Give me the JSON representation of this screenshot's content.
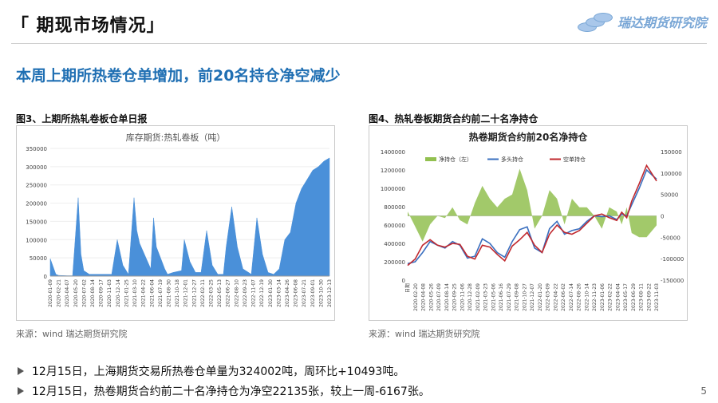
{
  "header": {
    "title": "「 期现市场情况」",
    "brand": "瑞达期货研究院"
  },
  "subtitle": "本周上期所热卷仓单增加，前20名持仓净空减少",
  "figure3": {
    "caption": "图3、上期所热轧卷板仓单日报",
    "source": "来源：wind   瑞达期货研究院"
  },
  "figure4": {
    "caption": "图4、热轧卷板期货合约前二十名净持仓",
    "source": "来源：wind   瑞达期货研究院"
  },
  "bullets": [
    "12月15日，上海期货交易所热卷仓单量为324002吨，周环比+10493吨。",
    "12月15日，热卷期货合约前二十名净持仓为净空22135张，较上一周-6167张。"
  ],
  "page_number": "5",
  "chart_data": [
    {
      "type": "area",
      "title": "库存期货:热轧卷板（吨）",
      "ylim": [
        0,
        350000
      ],
      "yticks": [
        "0",
        "50000",
        "100000",
        "150000",
        "200000",
        "250000",
        "300000",
        "350000"
      ],
      "color": "#4a90d9",
      "xticks": [
        "2020-01-09",
        "2020-02-21",
        "2020-04-07",
        "2020-05-20",
        "2020-07-02",
        "2020-08-14",
        "2020-09-17",
        "2020-11-03",
        "2020-12-14",
        "2021-01-25",
        "2021-03-10",
        "2021-04-22",
        "2021-06-04",
        "2021-07-19",
        "2021-08-30",
        "2021-10-18",
        "2021-12-01",
        "2021-12-27",
        "2022-02-11",
        "2022-03-25",
        "2022-05-13",
        "2022-06-27",
        "2022-08-10",
        "2022-09-23",
        "2022-11-07",
        "2022-12-19",
        "2023-01-30",
        "2023-03-14",
        "2023-04-26",
        "2023-06-08",
        "2023-07-21",
        "2023-09-01",
        "2023-10-30",
        "2023-12-13"
      ],
      "x": [
        0,
        0.02,
        0.03,
        0.06,
        0.08,
        0.1,
        0.11,
        0.12,
        0.14,
        0.17,
        0.18,
        0.2,
        0.22,
        0.24,
        0.26,
        0.28,
        0.3,
        0.31,
        0.32,
        0.36,
        0.37,
        0.38,
        0.41,
        0.42,
        0.44,
        0.47,
        0.48,
        0.5,
        0.52,
        0.54,
        0.56,
        0.58,
        0.6,
        0.62,
        0.63,
        0.65,
        0.67,
        0.69,
        0.71,
        0.72,
        0.74,
        0.76,
        0.78,
        0.8,
        0.82,
        0.84,
        0.86,
        0.88,
        0.9,
        0.92,
        0.94,
        0.96,
        0.98,
        1.0
      ],
      "values": [
        48000,
        5000,
        2000,
        1000,
        1000,
        215000,
        60000,
        15000,
        5000,
        5000,
        5000,
        5000,
        5000,
        100000,
        30000,
        5000,
        215000,
        125000,
        90000,
        20000,
        160000,
        80000,
        20000,
        5000,
        10000,
        15000,
        100000,
        40000,
        10000,
        10000,
        125000,
        30000,
        5000,
        5000,
        80000,
        190000,
        80000,
        20000,
        10000,
        5000,
        160000,
        60000,
        10000,
        5000,
        20000,
        100000,
        120000,
        200000,
        240000,
        265000,
        290000,
        300000,
        315000,
        324000
      ]
    },
    {
      "type": "line",
      "title": "热卷期货合约前20名净持仓",
      "legend": [
        "净持仓（左）",
        "多头持仓",
        "空单持仓"
      ],
      "legend_position": "top",
      "ylim": [
        0,
        1400000
      ],
      "yticks": [
        "0",
        "200000",
        "400000",
        "600000",
        "800000",
        "1000000",
        "1200000",
        "1400000"
      ],
      "y2lim": [
        -150000,
        150000
      ],
      "y2ticks": [
        "150000",
        "100000",
        "50000",
        "0",
        "-50000",
        "-100000",
        "-150000"
      ],
      "xticks": [
        "日期",
        "2020-02-20",
        "2020-04-08",
        "2020-05-26",
        "2020-07-09",
        "2020-08-14",
        "2020-09-25",
        "2020-11-06",
        "2020-12-28",
        "2021-02-09",
        "2021-03-23",
        "2021-05-06",
        "2021-06-16",
        "2021-07-29",
        "2021-09-08",
        "2021-10-27",
        "2021-12-07",
        "2022-01-20",
        "2022-03-09",
        "2022-04-22",
        "2022-06-02",
        "2022-07-14",
        "2022-08-26",
        "2022-10-14",
        "2022-11-23",
        "2023-01-06",
        "2023-02-22",
        "2023-04-04",
        "2023-05-17",
        "2023-06-29",
        "2023-08-11",
        "2023-09-22",
        "2023-11-03"
      ],
      "colors": {
        "net": "#92c050",
        "long": "#3a6fbf",
        "short": "#c0282e"
      },
      "series": [
        {
          "name": "多头持仓",
          "x": [
            0,
            0.03,
            0.06,
            0.09,
            0.12,
            0.15,
            0.18,
            0.21,
            0.24,
            0.27,
            0.3,
            0.33,
            0.36,
            0.39,
            0.42,
            0.45,
            0.48,
            0.51,
            0.54,
            0.57,
            0.6,
            0.63,
            0.66,
            0.69,
            0.72,
            0.75,
            0.78,
            0.81,
            0.84,
            0.86,
            0.88,
            0.9,
            0.93,
            0.96,
            1.0
          ],
          "values": [
            180000,
            200000,
            300000,
            420000,
            380000,
            350000,
            420000,
            380000,
            240000,
            260000,
            450000,
            400000,
            300000,
            250000,
            420000,
            550000,
            580000,
            350000,
            300000,
            560000,
            640000,
            500000,
            540000,
            560000,
            640000,
            700000,
            690000,
            700000,
            660000,
            720000,
            700000,
            820000,
            1000000,
            1200000,
            1100000
          ]
        },
        {
          "name": "空单持仓",
          "x": [
            0,
            0.03,
            0.06,
            0.09,
            0.12,
            0.15,
            0.18,
            0.21,
            0.24,
            0.27,
            0.3,
            0.33,
            0.36,
            0.39,
            0.42,
            0.45,
            0.48,
            0.51,
            0.54,
            0.57,
            0.6,
            0.63,
            0.66,
            0.69,
            0.72,
            0.75,
            0.78,
            0.81,
            0.84,
            0.86,
            0.88,
            0.9,
            0.93,
            0.96,
            1.0
          ],
          "values": [
            160000,
            230000,
            380000,
            440000,
            380000,
            360000,
            400000,
            390000,
            260000,
            230000,
            380000,
            360000,
            280000,
            210000,
            370000,
            440000,
            520000,
            380000,
            300000,
            500000,
            600000,
            520000,
            500000,
            540000,
            620000,
            700000,
            720000,
            680000,
            650000,
            740000,
            680000,
            860000,
            1050000,
            1250000,
            1080000
          ]
        },
        {
          "name": "净持仓（左）",
          "x": [
            0,
            0.03,
            0.06,
            0.09,
            0.12,
            0.15,
            0.18,
            0.21,
            0.24,
            0.27,
            0.3,
            0.33,
            0.36,
            0.39,
            0.42,
            0.45,
            0.48,
            0.51,
            0.54,
            0.57,
            0.6,
            0.63,
            0.66,
            0.69,
            0.72,
            0.75,
            0.78,
            0.81,
            0.84,
            0.86,
            0.88,
            0.9,
            0.93,
            0.96,
            1.0
          ],
          "values": [
            10000,
            -25000,
            -60000,
            -20000,
            0,
            -5000,
            20000,
            -10000,
            -20000,
            30000,
            70000,
            40000,
            20000,
            40000,
            50000,
            110000,
            60000,
            -30000,
            0,
            60000,
            40000,
            -20000,
            40000,
            20000,
            20000,
            0,
            -30000,
            20000,
            10000,
            -20000,
            20000,
            -40000,
            -50000,
            -50000,
            -22135
          ]
        }
      ]
    }
  ]
}
